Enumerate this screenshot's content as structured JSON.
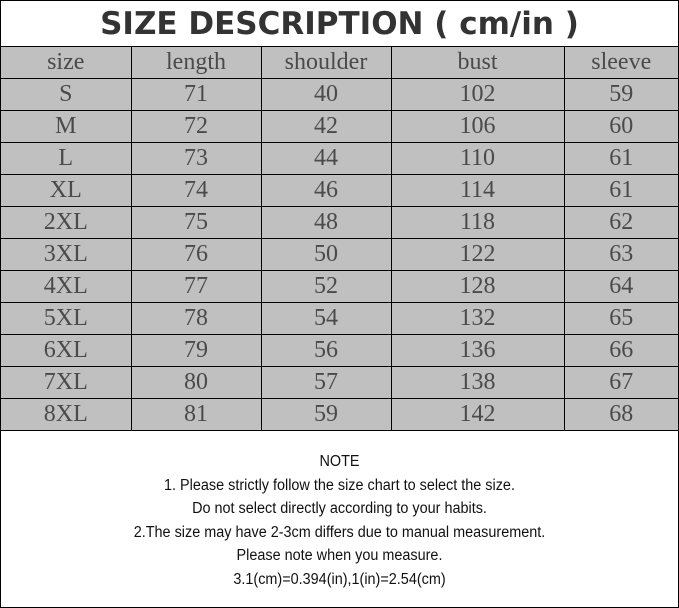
{
  "title": "SIZE DESCRIPTION ( cm/in )",
  "table": {
    "headers": [
      "size",
      "length",
      "shoulder",
      "bust",
      "sleeve"
    ],
    "rows": [
      [
        "S",
        "71",
        "40",
        "102",
        "59"
      ],
      [
        "M",
        "72",
        "42",
        "106",
        "60"
      ],
      [
        "L",
        "73",
        "44",
        "110",
        "61"
      ],
      [
        "XL",
        "74",
        "46",
        "114",
        "61"
      ],
      [
        "2XL",
        "75",
        "48",
        "118",
        "62"
      ],
      [
        "3XL",
        "76",
        "50",
        "122",
        "63"
      ],
      [
        "4XL",
        "77",
        "52",
        "128",
        "64"
      ],
      [
        "5XL",
        "78",
        "54",
        "132",
        "65"
      ],
      [
        "6XL",
        "79",
        "56",
        "136",
        "66"
      ],
      [
        "7XL",
        "80",
        "57",
        "138",
        "67"
      ],
      [
        "8XL",
        "81",
        "59",
        "142",
        "68"
      ]
    ]
  },
  "notes": {
    "heading": "NOTE",
    "lines": [
      "1. Please strictly follow the size chart to select the size.",
      "Do not select directly according to your habits.",
      "2.The size may have 2-3cm differs due to manual measurement.",
      "Please note when you measure.",
      "3.1(cm)=0.394(in),1(in)=2.54(cm)"
    ]
  },
  "colors": {
    "table_bg": "#c0c0c0",
    "text": "#4a4a4a",
    "title": "#333333"
  }
}
